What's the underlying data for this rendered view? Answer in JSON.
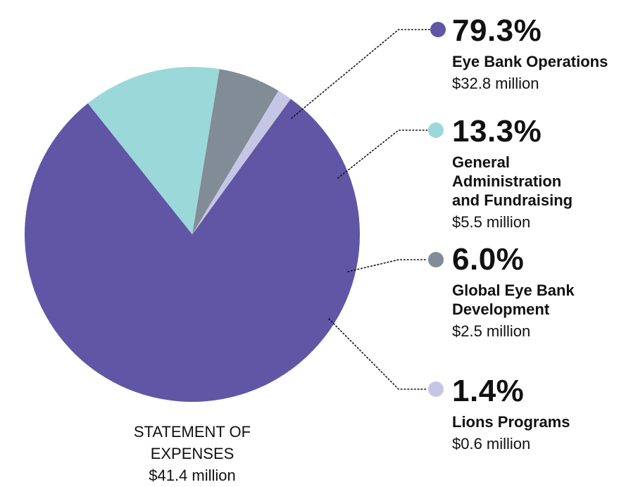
{
  "chart_data": {
    "type": "pie",
    "title": "STATEMENT OF EXPENSES",
    "title_lines": [
      "STATEMENT OF",
      "EXPENSES"
    ],
    "total_amount": "$41.4 million",
    "slices": [
      {
        "percent": 79.3,
        "percent_label": "79.3%",
        "name_lines": [
          "Eye Bank Operations"
        ],
        "amount": "$32.8 million",
        "color": "#6156A5"
      },
      {
        "percent": 13.3,
        "percent_label": "13.3%",
        "name_lines": [
          "General",
          "Administration",
          "and Fundraising"
        ],
        "amount": "$5.5 million",
        "color": "#9BD8D9"
      },
      {
        "percent": 6.0,
        "percent_label": "6.0%",
        "name_lines": [
          "Global Eye Bank",
          "Development"
        ],
        "amount": "$2.5 million",
        "color": "#828C96"
      },
      {
        "percent": 1.4,
        "percent_label": "1.4%",
        "name_lines": [
          "Lions Programs"
        ],
        "amount": "$0.6 million",
        "color": "#C5C6E6"
      }
    ]
  }
}
